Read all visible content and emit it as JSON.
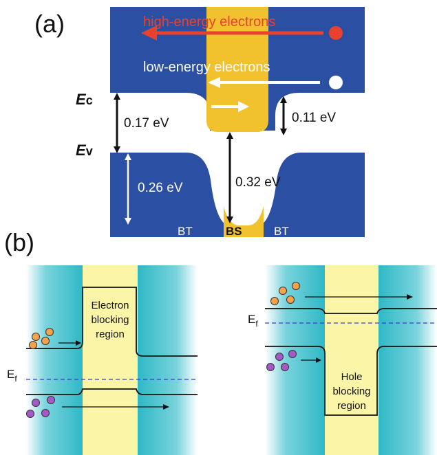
{
  "panel_a": {
    "label": "(a)",
    "high_energy_label": "high-energy electrons",
    "low_energy_label": "low-energy electrons",
    "ec_label_E": "E",
    "ec_label_sub": "c",
    "ev_label_E": "E",
    "ev_label_sub": "v",
    "gap_left": "0.17 eV",
    "gap_right": "0.11 eV",
    "valence_offset": "0.26 eV",
    "bs_gap": "0.32 eV",
    "region_left": "BT",
    "region_center": "BS",
    "region_right": "BT",
    "colors": {
      "band": "#2b4fa3",
      "barrier": "#f2c12e",
      "high_energy": "#e8422f",
      "white": "#ffffff"
    }
  },
  "panel_b": {
    "label": "(b)",
    "left": {
      "block_line1": "Electron",
      "block_line2": "blocking",
      "block_line3": "region",
      "fermi_E": "E",
      "fermi_sub": "f"
    },
    "right": {
      "block_line1": "Hole",
      "block_line2": "blocking",
      "block_line3": "region",
      "fermi_E": "E",
      "fermi_sub": "f"
    },
    "colors": {
      "cyan": "#2fb8c6",
      "yellow": "#fbf5a8",
      "electron": "#f5a34a",
      "hole": "#a35ac7",
      "fermi": "#3a3acb"
    }
  }
}
